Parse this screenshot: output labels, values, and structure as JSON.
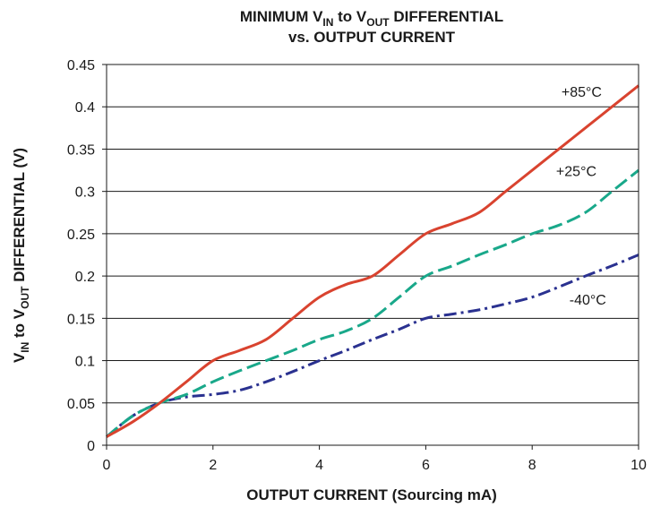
{
  "chart_data": {
    "type": "line",
    "title": {
      "line1": {
        "pre": "MINIMUM V",
        "sub1": "IN",
        "mid": " to V",
        "sub2": "OUT",
        "post": " DIFFERENTIAL"
      },
      "line2": "vs. OUTPUT CURRENT"
    },
    "xlabel": "OUTPUT CURRENT (Sourcing mA)",
    "ylabel": {
      "pre": "V",
      "sub1": "IN",
      "mid": " to V",
      "sub2": "OUT",
      "post": " DIFFERENTIAL (V)"
    },
    "xlim": [
      0,
      10
    ],
    "ylim": [
      0,
      0.45
    ],
    "x_ticks": [
      "0",
      "2",
      "4",
      "6",
      "8",
      "10"
    ],
    "y_ticks": [
      "0",
      "0.05",
      "0.1",
      "0.15",
      "0.2",
      "0.25",
      "0.3",
      "0.35",
      "0.4",
      "0.45"
    ],
    "grid": "horizontal",
    "series": [
      {
        "name": "+85°C",
        "color": "#d9432f",
        "style": "solid",
        "points": [
          [
            0,
            0.01
          ],
          [
            0.5,
            0.028
          ],
          [
            1,
            0.05
          ],
          [
            1.5,
            0.075
          ],
          [
            2,
            0.1
          ],
          [
            2.5,
            0.112
          ],
          [
            3,
            0.125
          ],
          [
            3.5,
            0.15
          ],
          [
            4,
            0.175
          ],
          [
            4.5,
            0.19
          ],
          [
            5,
            0.2
          ],
          [
            5.5,
            0.225
          ],
          [
            6,
            0.25
          ],
          [
            6.5,
            0.262
          ],
          [
            7,
            0.275
          ],
          [
            7.5,
            0.3
          ],
          [
            8,
            0.325
          ],
          [
            8.5,
            0.35
          ],
          [
            9,
            0.375
          ],
          [
            9.5,
            0.4
          ],
          [
            10,
            0.425
          ]
        ]
      },
      {
        "name": "+25°C",
        "color": "#19a88a",
        "style": "dashed",
        "points": [
          [
            0,
            0.01
          ],
          [
            0.5,
            0.035
          ],
          [
            1,
            0.05
          ],
          [
            1.5,
            0.06
          ],
          [
            2,
            0.075
          ],
          [
            2.5,
            0.088
          ],
          [
            3,
            0.1
          ],
          [
            3.5,
            0.112
          ],
          [
            4,
            0.125
          ],
          [
            4.5,
            0.135
          ],
          [
            5,
            0.15
          ],
          [
            5.5,
            0.175
          ],
          [
            6,
            0.2
          ],
          [
            6.5,
            0.212
          ],
          [
            7,
            0.225
          ],
          [
            7.5,
            0.237
          ],
          [
            8,
            0.25
          ],
          [
            8.5,
            0.26
          ],
          [
            9,
            0.275
          ],
          [
            9.5,
            0.3
          ],
          [
            10,
            0.325
          ]
        ]
      },
      {
        "name": "-40°C",
        "color": "#2a3190",
        "style": "dashdot",
        "points": [
          [
            0,
            0.01
          ],
          [
            0.5,
            0.035
          ],
          [
            1,
            0.05
          ],
          [
            1.5,
            0.057
          ],
          [
            2,
            0.06
          ],
          [
            2.5,
            0.065
          ],
          [
            3,
            0.075
          ],
          [
            3.5,
            0.087
          ],
          [
            4,
            0.1
          ],
          [
            4.5,
            0.112
          ],
          [
            5,
            0.125
          ],
          [
            5.5,
            0.137
          ],
          [
            6,
            0.15
          ],
          [
            6.5,
            0.155
          ],
          [
            7,
            0.16
          ],
          [
            7.5,
            0.167
          ],
          [
            8,
            0.175
          ],
          [
            8.5,
            0.187
          ],
          [
            9,
            0.2
          ],
          [
            9.5,
            0.212
          ],
          [
            10,
            0.225
          ]
        ]
      }
    ]
  }
}
